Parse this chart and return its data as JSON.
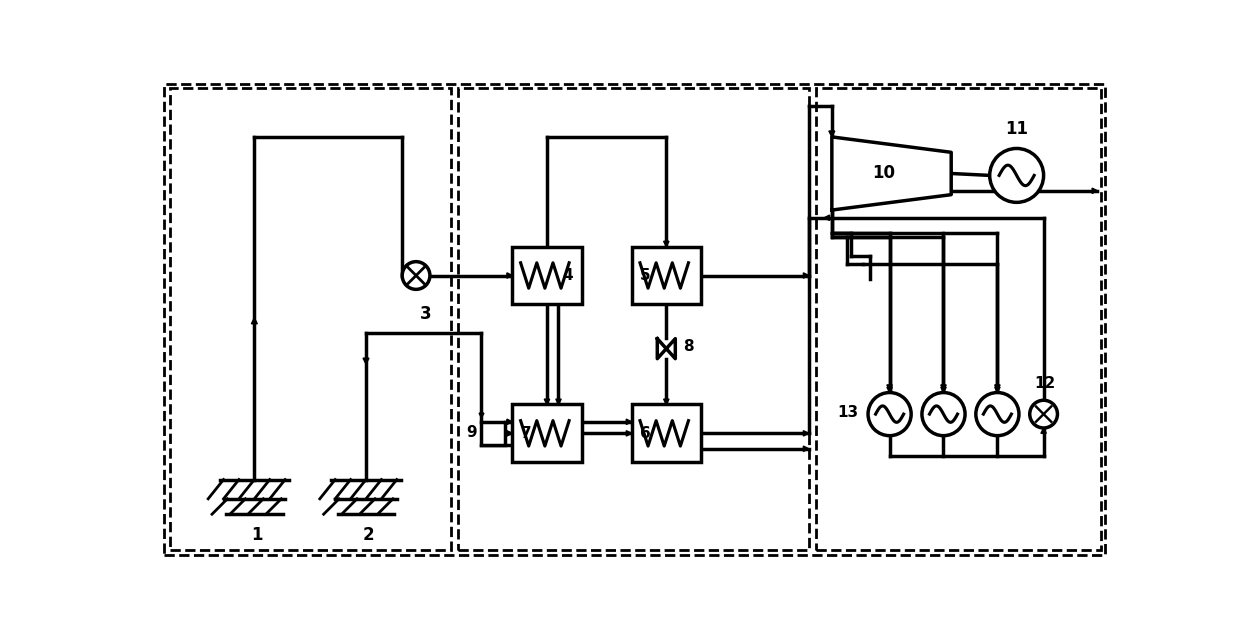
{
  "bg_color": "#ffffff",
  "line_color": "#000000",
  "lw": 2.5,
  "fig_w": 12.4,
  "fig_h": 6.34,
  "dpi": 100
}
